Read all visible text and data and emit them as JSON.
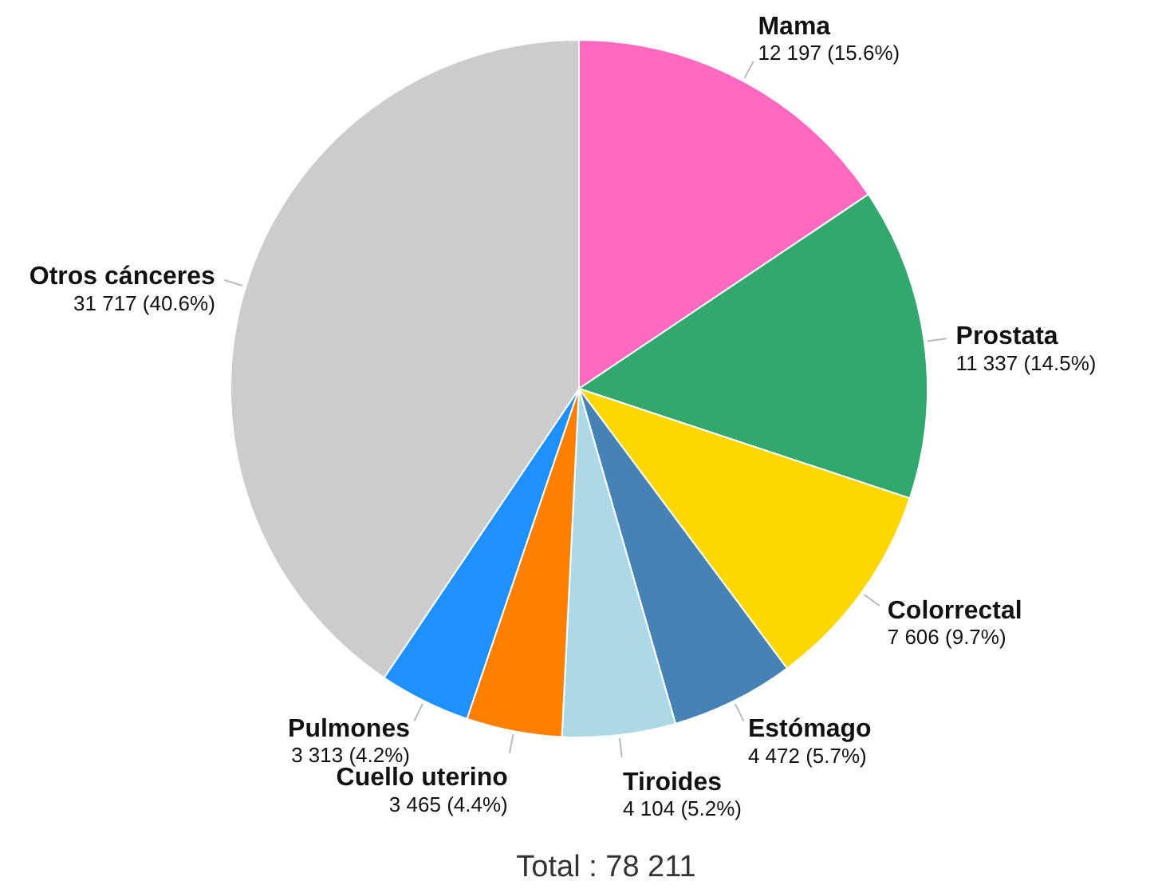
{
  "chart_data": {
    "type": "pie",
    "categories": [
      "Mama",
      "Prostata",
      "Colorrectal",
      "Estómago",
      "Tiroides",
      "Cuello uterino",
      "Pulmones",
      "Otros cánceres"
    ],
    "values": [
      12197,
      11337,
      7606,
      4472,
      4104,
      3465,
      3313,
      31717
    ],
    "value_labels": [
      "12 197 (15.6%)",
      "11 337 (14.5%)",
      "7 606 (9.7%)",
      "4 472 (5.7%)",
      "4 104 (5.2%)",
      "3 465 (4.4%)",
      "3 313 (4.2%)",
      "31 717 (40.6%)"
    ],
    "colors": [
      "#ff69c0",
      "#33a86e",
      "#ffd700",
      "#4682b4",
      "#add8e6",
      "#ff7f00",
      "#1e90ff",
      "#cccccc"
    ],
    "annotations": [
      "Total : 78 211"
    ],
    "legend": false
  }
}
